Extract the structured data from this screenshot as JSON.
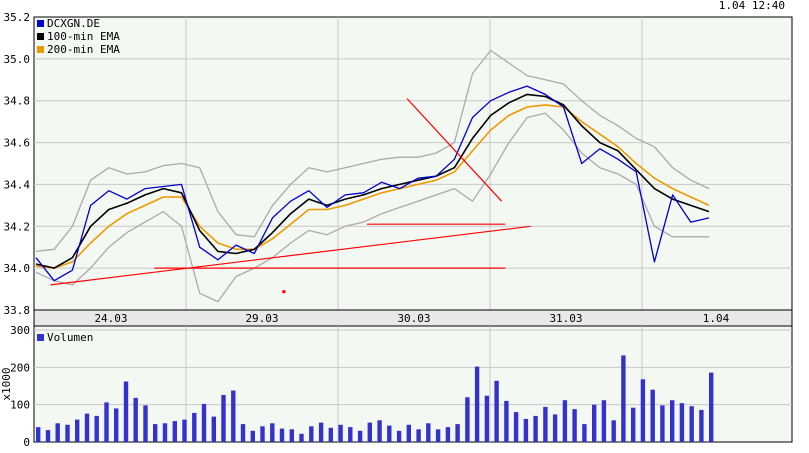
{
  "timestamp": "1.04 12:40",
  "colors": {
    "price": "#0000cc",
    "ema100": "#000000",
    "ema200": "#ee9900",
    "bands": "#aaaaaa",
    "trend": "#ff0000",
    "volume": "#3333cc",
    "grid": "#c8c8c8",
    "panel_bg": "#f4f8f3",
    "axis_strip": "#e8e8e8"
  },
  "chart_data": [
    {
      "type": "line",
      "ylim": [
        33.8,
        35.2
      ],
      "yticks": [
        "33.8",
        "34.0",
        "34.2",
        "34.4",
        "34.6",
        "34.8",
        "35.0",
        "35.2"
      ],
      "xticks": [
        "24.03",
        "29.03",
        "30.03",
        "31.03",
        "1.04"
      ],
      "legend": [
        "DCXGN.DE",
        "100-min EMA",
        "200-min EMA"
      ],
      "legend_position": "top-left",
      "grid": true,
      "sessions": [
        "24.03",
        "29.03",
        "30.03",
        "31.03",
        "1.04"
      ],
      "series": [
        {
          "name": "DCXGN.DE",
          "values": [
            34.05,
            33.94,
            33.99,
            34.3,
            34.37,
            34.33,
            34.38,
            34.39,
            34.4,
            34.1,
            34.04,
            34.11,
            34.07,
            34.24,
            34.32,
            34.37,
            34.29,
            34.35,
            34.36,
            34.41,
            34.38,
            34.43,
            34.44,
            34.52,
            34.72,
            34.8,
            34.84,
            34.87,
            34.83,
            34.77,
            34.5,
            34.57,
            34.52,
            34.46,
            34.03,
            34.35,
            34.22,
            34.24
          ]
        },
        {
          "name": "100-min EMA",
          "values": [
            34.02,
            34.0,
            34.05,
            34.2,
            34.28,
            34.31,
            34.35,
            34.38,
            34.36,
            34.18,
            34.08,
            34.07,
            34.09,
            34.17,
            34.26,
            34.33,
            34.3,
            34.33,
            34.35,
            34.38,
            34.4,
            34.42,
            34.44,
            34.48,
            34.62,
            34.73,
            34.79,
            34.83,
            34.82,
            34.78,
            34.68,
            34.6,
            34.56,
            34.47,
            34.38,
            34.33,
            34.3,
            34.27
          ]
        },
        {
          "name": "200-min EMA",
          "values": [
            34.01,
            34.0,
            34.03,
            34.12,
            34.2,
            34.26,
            34.3,
            34.34,
            34.34,
            34.2,
            34.12,
            34.09,
            34.09,
            34.14,
            34.21,
            34.28,
            34.28,
            34.3,
            34.33,
            34.36,
            34.38,
            34.4,
            34.42,
            34.46,
            34.56,
            34.66,
            34.73,
            34.77,
            34.78,
            34.77,
            34.7,
            34.64,
            34.58,
            34.5,
            34.43,
            34.38,
            34.34,
            34.3
          ]
        },
        {
          "name": "",
          "values": [
            34.08,
            34.09,
            34.2,
            34.42,
            34.48,
            34.45,
            34.46,
            34.49,
            34.5,
            34.48,
            34.27,
            34.16,
            34.15,
            34.3,
            34.4,
            34.48,
            34.46,
            34.48,
            34.5,
            34.52,
            34.53,
            34.53,
            34.55,
            34.6,
            34.93,
            35.04,
            34.98,
            34.92,
            34.9,
            34.88,
            34.8,
            34.73,
            34.68,
            34.62,
            34.58,
            34.48,
            34.42,
            34.38
          ]
        },
        {
          "name": "",
          "values": [
            33.98,
            33.94,
            33.92,
            34.0,
            34.1,
            34.17,
            34.22,
            34.27,
            34.2,
            33.88,
            33.84,
            33.96,
            34.0,
            34.05,
            34.12,
            34.18,
            34.16,
            34.2,
            34.22,
            34.26,
            34.29,
            34.32,
            34.35,
            34.38,
            34.32,
            34.45,
            34.6,
            34.72,
            34.74,
            34.66,
            34.55,
            34.48,
            34.45,
            34.4,
            34.2,
            34.15,
            34.15,
            34.15
          ]
        }
      ],
      "trendlines": [
        {
          "from": [
            0.8,
            33.92
          ],
          "to": [
            27.2,
            34.2
          ]
        },
        {
          "from": [
            6.5,
            34.0
          ],
          "to": [
            25.8,
            34.0
          ]
        },
        {
          "from": [
            18.2,
            34.21
          ],
          "to": [
            25.8,
            34.21
          ]
        },
        {
          "from": [
            20.4,
            34.81
          ],
          "to": [
            25.6,
            34.32
          ]
        }
      ],
      "marker": {
        "x": 13.6,
        "y": 33.89
      }
    },
    {
      "type": "bar",
      "ylabel": "x1000",
      "ylim": [
        0,
        300
      ],
      "yticks": [
        "0",
        "100",
        "200",
        "300"
      ],
      "legend": [
        "Volumen"
      ],
      "legend_position": "top-left",
      "grid": true,
      "values": [
        40,
        32,
        50,
        46,
        60,
        76,
        70,
        106,
        90,
        162,
        118,
        98,
        48,
        50,
        56,
        60,
        78,
        102,
        68,
        126,
        138,
        48,
        30,
        42,
        50,
        36,
        34,
        22,
        42,
        52,
        38,
        46,
        40,
        30,
        52,
        58,
        44,
        30,
        46,
        34,
        50,
        34,
        40,
        48,
        120,
        202,
        124,
        164,
        110,
        80,
        62,
        70,
        94,
        74,
        112,
        88,
        48,
        100,
        112,
        58,
        232,
        92,
        168,
        140,
        98,
        112,
        104,
        96,
        86,
        186
      ]
    }
  ]
}
